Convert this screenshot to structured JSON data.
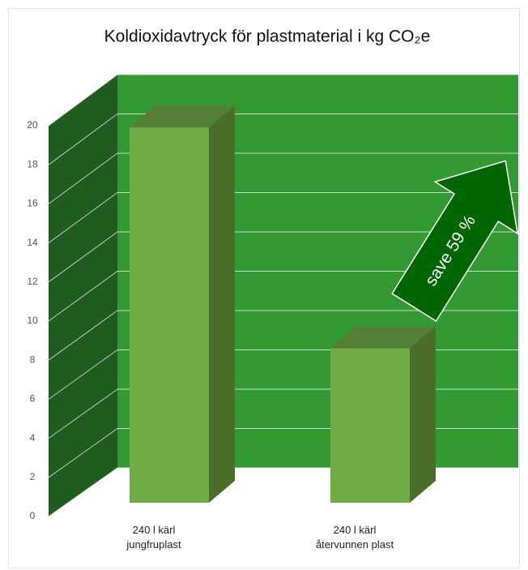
{
  "chart_data": {
    "type": "bar3d",
    "title": "Koldioxidavtryck för plastmaterial i kg CO₂e",
    "categories": [
      "240 l kärl\njungfruplast",
      "240 l kärl\nåtervunnen plast"
    ],
    "values": [
      19.2,
      7.9
    ],
    "color": "#70ad47",
    "ylim": [
      0,
      20
    ],
    "yticks": [
      0,
      2,
      4,
      6,
      8,
      10,
      12,
      14,
      16,
      18,
      20
    ],
    "grid": true,
    "annotation": "save 59 %"
  }
}
